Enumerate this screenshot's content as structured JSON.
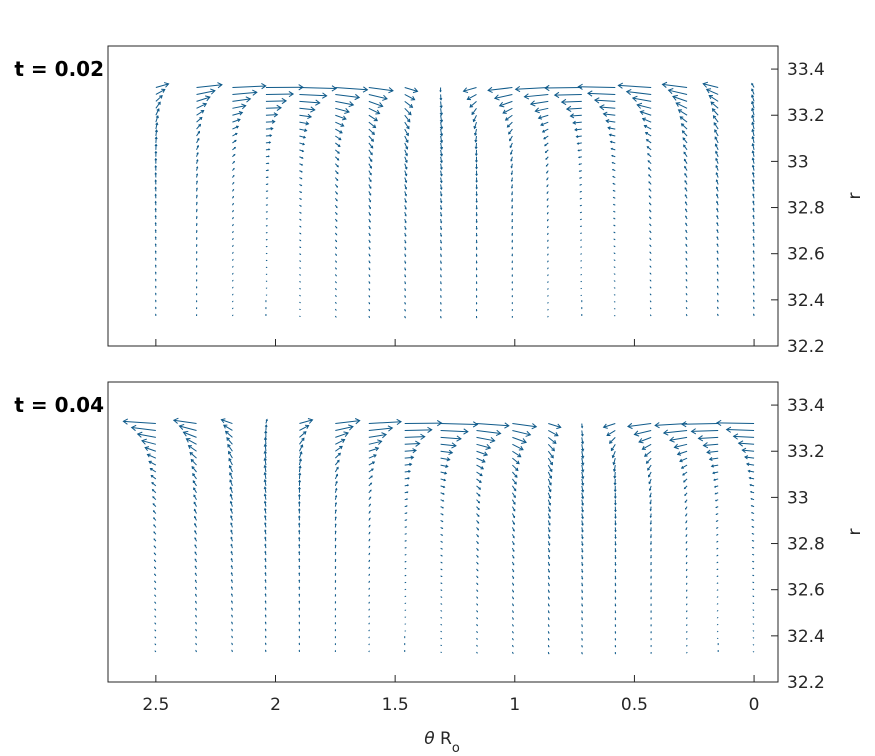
{
  "colors": {
    "arrow": "#0f5a8a",
    "axis": "#262626"
  },
  "chart_data": [
    {
      "type": "quiver",
      "title": "t = 0.02",
      "ylabel": "r",
      "xlabel": "",
      "x_reversed": true,
      "xlim": [
        -0.1,
        2.7
      ],
      "ylim": [
        32.2,
        33.5
      ],
      "yticks": [
        32.2,
        32.4,
        32.6,
        32.8,
        33,
        33.2,
        33.4
      ],
      "ytick_labels": [
        "32.2",
        "32.4",
        "32.6",
        "32.8",
        "33",
        "33.2",
        "33.4"
      ],
      "xticks": [
        0,
        0.5,
        1,
        1.5,
        2,
        2.5
      ],
      "y_axis_location": "right",
      "x_columns": [
        2.5,
        2.33,
        2.18,
        2.04,
        1.9,
        1.75,
        1.61,
        1.46,
        1.31,
        1.16,
        1.01,
        0.86,
        0.72,
        0.58,
        0.43,
        0.28,
        0.15,
        0.0
      ],
      "r_rows": [
        32.33,
        32.36,
        32.39,
        32.42,
        32.45,
        32.48,
        32.51,
        32.54,
        32.57,
        32.6,
        32.63,
        32.66,
        32.69,
        32.72,
        32.75,
        32.78,
        32.81,
        32.84,
        32.87,
        32.9,
        32.93,
        32.96,
        32.99,
        33.02,
        33.05,
        33.08,
        33.11,
        33.14,
        33.17,
        33.2,
        33.23,
        33.26,
        33.29,
        33.32
      ],
      "wave_phase": 0.0
    },
    {
      "type": "quiver",
      "title": "t = 0.04",
      "ylabel": "r",
      "xlabel": "θ R_o",
      "x_reversed": true,
      "xlim": [
        -0.1,
        2.7
      ],
      "ylim": [
        32.2,
        33.5
      ],
      "yticks": [
        32.2,
        32.4,
        32.6,
        32.8,
        33,
        33.2,
        33.4
      ],
      "ytick_labels": [
        "32.2",
        "32.4",
        "32.6",
        "32.8",
        "33",
        "33.2",
        "33.4"
      ],
      "xticks": [
        0,
        0.5,
        1,
        1.5,
        2,
        2.5
      ],
      "xtick_labels": [
        "0",
        "0.5",
        "1",
        "1.5",
        "2",
        "2.5"
      ],
      "y_axis_location": "right",
      "x_columns": [
        2.5,
        2.33,
        2.18,
        2.04,
        1.9,
        1.75,
        1.61,
        1.46,
        1.31,
        1.16,
        1.01,
        0.86,
        0.72,
        0.58,
        0.43,
        0.28,
        0.15,
        0.0
      ],
      "r_rows": [
        32.33,
        32.36,
        32.39,
        32.42,
        32.45,
        32.48,
        32.51,
        32.54,
        32.57,
        32.6,
        32.63,
        32.66,
        32.69,
        32.72,
        32.75,
        32.78,
        32.81,
        32.84,
        32.87,
        32.9,
        32.93,
        32.96,
        32.99,
        33.02,
        33.05,
        33.08,
        33.11,
        33.14,
        33.17,
        33.2,
        33.23,
        33.26,
        33.29,
        33.32
      ],
      "wave_phase": 1.4
    }
  ]
}
